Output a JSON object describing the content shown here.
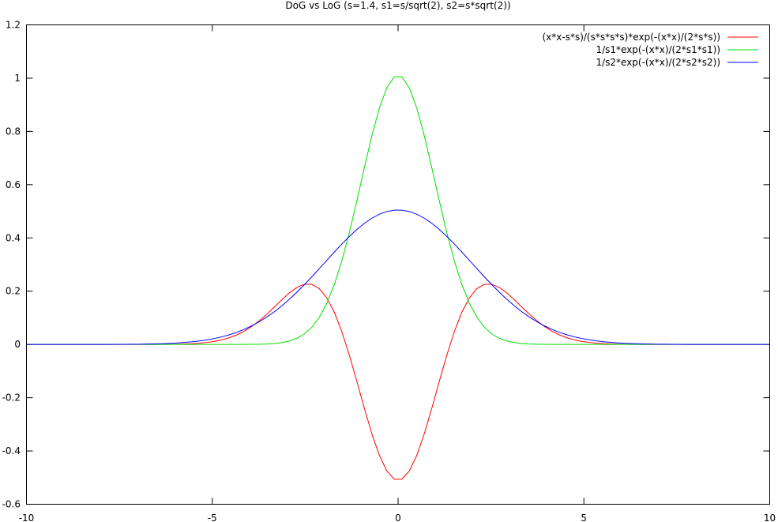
{
  "chart_data": {
    "type": "line",
    "title": "DoG vs LoG (s=1.4, s1=s/sqrt(2), s2=s*sqrt(2))",
    "xlabel": "",
    "ylabel": "",
    "xlim": [
      -10,
      10
    ],
    "ylim": [
      -0.6,
      1.2
    ],
    "x_ticks": [
      -10,
      -5,
      0,
      5,
      10
    ],
    "x_tick_labels": [
      "-10",
      "-5",
      "0",
      "5",
      "10"
    ],
    "y_ticks": [
      -0.6,
      -0.4,
      -0.2,
      0,
      0.2,
      0.4,
      0.6,
      0.8,
      1,
      1.2
    ],
    "y_tick_labels": [
      "-0.6",
      "-0.4",
      "-0.2",
      "0",
      "0.2",
      "0.4",
      "0.6",
      "0.8",
      "1",
      "1.2"
    ],
    "grid": false,
    "legend_position": "top-right",
    "sample_points": 100,
    "series": [
      {
        "name": "(x*x-s*s)/(s*s*s*s)*exp(-(x*x)/(2*s*s))",
        "color": "#ff0000",
        "formula": "log",
        "s": 1.4
      },
      {
        "name": "1/s1*exp(-(x*x)/(2*s1*s1))",
        "color": "#00dd00",
        "formula": "gauss",
        "s": 0.98995
      },
      {
        "name": "1/s2*exp(-(x*x)/(2*s2*s2))",
        "color": "#0000ff",
        "formula": "gauss",
        "s": 1.9799
      }
    ]
  }
}
